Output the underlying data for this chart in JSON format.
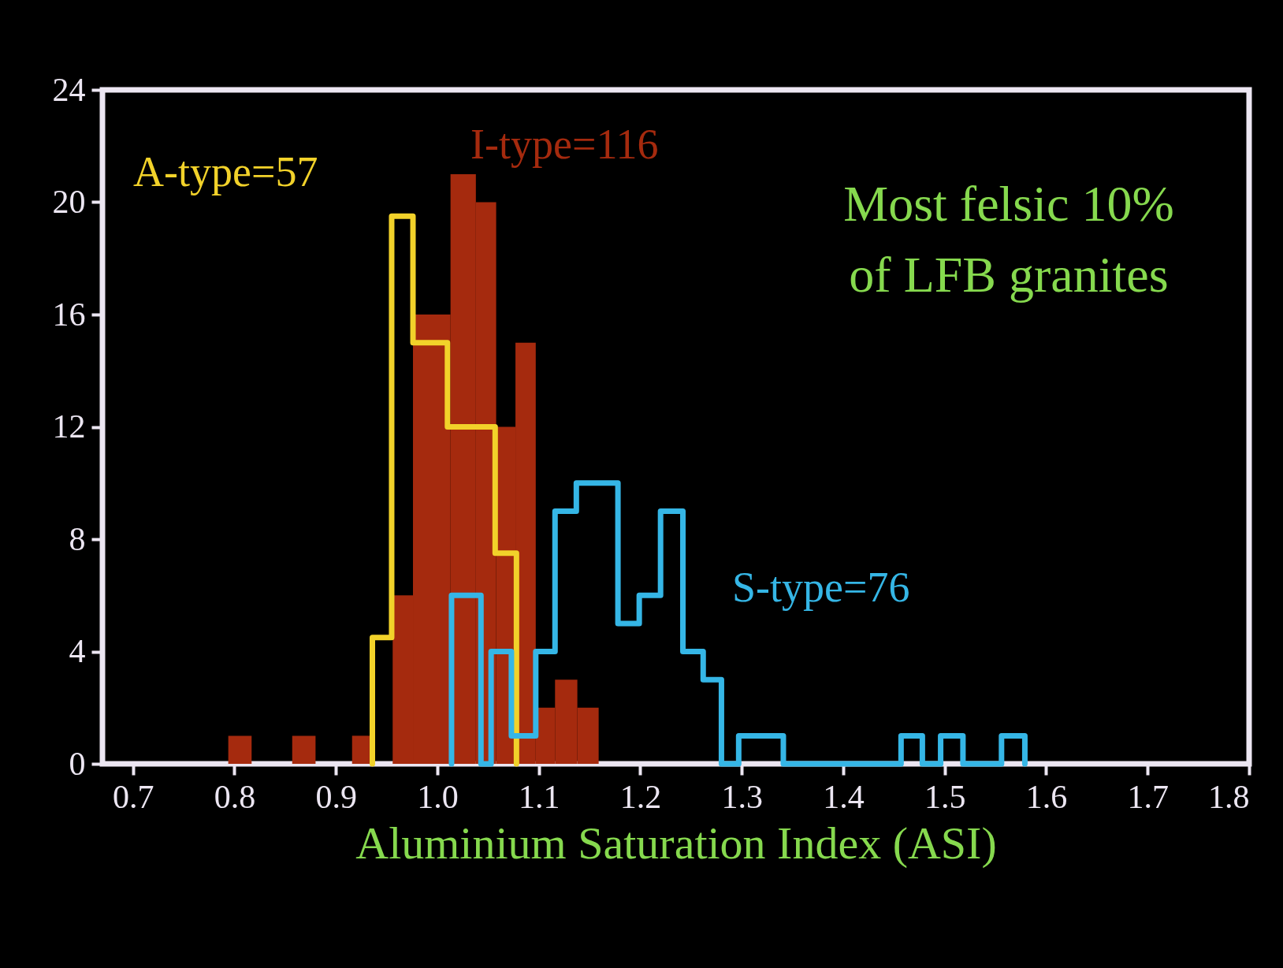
{
  "chart_data": {
    "type": "histogram",
    "xlabel": "Aluminium Saturation Index (ASI)",
    "xlim": [
      0.67,
      1.8
    ],
    "xticks": [
      0.7,
      0.8,
      0.9,
      {
        "value": 1,
        "label": "1.0"
      },
      1.1,
      1.2,
      1.3,
      1.4,
      1.5,
      1.6,
      1.7,
      1.8
    ],
    "ylim": [
      0,
      24
    ],
    "yticks": [
      0,
      4,
      8,
      12,
      16,
      20,
      24
    ],
    "grid": false,
    "annotations": [
      "Most felsic 10%\nof LFB granites"
    ],
    "series": [
      {
        "name": "I-type=116",
        "type": "histogram",
        "color": "#a52a0e",
        "bins": [
          0.794,
          0.817,
          0.857,
          0.88,
          0.916,
          0.934,
          0.956,
          0.976,
          1.013,
          1.038,
          1.058,
          1.077,
          1.097,
          1.116,
          1.138,
          1.159
        ],
        "values": [
          1,
          0,
          1,
          0,
          1,
          0,
          6,
          16,
          21,
          20,
          12,
          15,
          2,
          3,
          2
        ]
      },
      {
        "name": "A-type=57",
        "type": "step",
        "color": "#f2d22a",
        "x": [
          0.936,
          0.936,
          0.955,
          0.976,
          1.01,
          1.057,
          1.078
        ],
        "values": [
          0,
          4.5,
          19.5,
          15,
          12,
          7.5,
          0
        ]
      },
      {
        "name": "S-type=76",
        "type": "step",
        "color": "#35b6e6",
        "x": [
          1.014,
          1.014,
          1.043,
          1.053,
          1.073,
          1.097,
          1.116,
          1.137,
          1.178,
          1.199,
          1.22,
          1.242,
          1.262,
          1.28,
          1.297,
          1.341,
          1.457,
          1.478,
          1.496,
          1.518,
          1.556,
          1.579
        ],
        "values": [
          0,
          6,
          0,
          4,
          1,
          4,
          9,
          10,
          5,
          6,
          9,
          4,
          3,
          0,
          1,
          0,
          1,
          0,
          1,
          0,
          1,
          0
        ]
      }
    ]
  }
}
